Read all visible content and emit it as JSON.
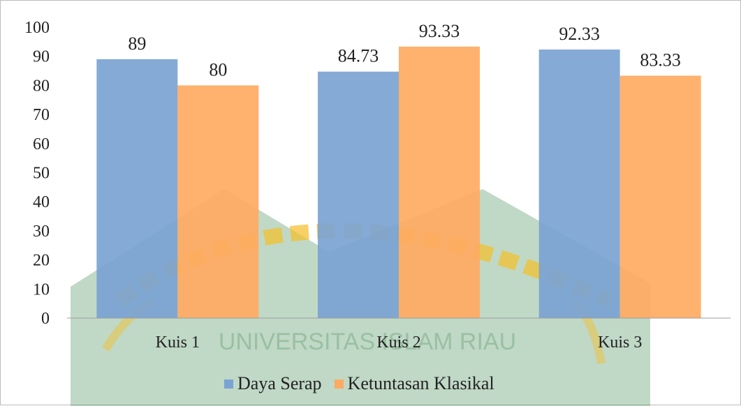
{
  "chart_data": {
    "type": "bar",
    "categories": [
      "Kuis 1",
      "Kuis 2",
      "Kuis 3"
    ],
    "series": [
      {
        "name": "Daya Serap",
        "values": [
          89,
          84.73,
          92.33
        ],
        "color": "#7ba3d3"
      },
      {
        "name": "Ketuntasan Klasikal",
        "values": [
          80,
          93.33,
          83.33
        ],
        "color": "#ffaa62"
      }
    ],
    "data_labels": [
      [
        "89",
        "84.73",
        "92.33"
      ],
      [
        "80",
        "93.33",
        "83.33"
      ]
    ],
    "ylim": [
      0,
      100
    ],
    "yticks": [
      0,
      10,
      20,
      30,
      40,
      50,
      60,
      70,
      80,
      90,
      100
    ],
    "legend_position": "bottom",
    "grid": false,
    "watermark": {
      "text": "UNIVERSITAS ISLAM RIAU",
      "colors": [
        "#2e7d3a",
        "#f2a900"
      ]
    }
  }
}
